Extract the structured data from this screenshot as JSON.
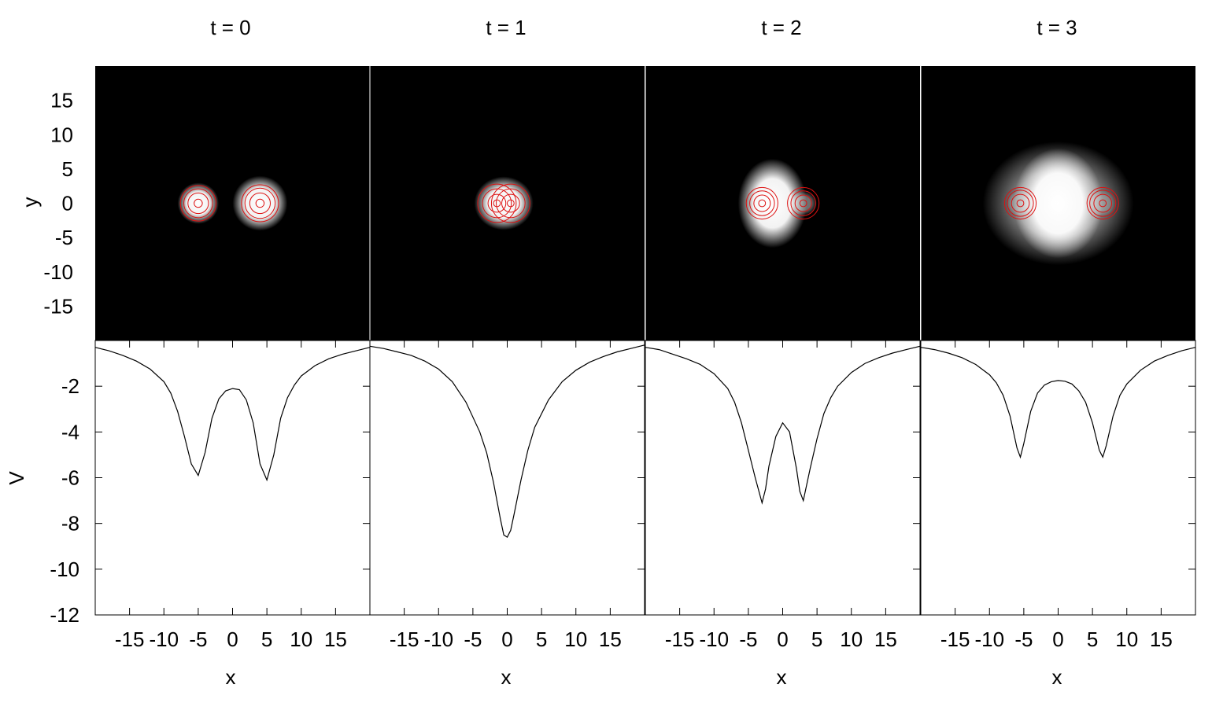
{
  "colors": {
    "background": "#ffffff",
    "map_background": "#000000",
    "density": "#ffffff",
    "contour": "#dd1111",
    "potential_line": "#000000"
  },
  "chart_data": {
    "type": "multi-panel: density maps with contours (top) and line plots (bottom)",
    "panel_titles": [
      "t = 0",
      "t = 1",
      "t = 2",
      "t = 3"
    ],
    "top_row": {
      "type": "heatmap",
      "xlim": [
        -20,
        20
      ],
      "ylim": [
        -20,
        20
      ],
      "ylabel": "y",
      "yticks": [
        "15",
        "10",
        "5",
        "0",
        "-5",
        "-10",
        "-15"
      ],
      "ytick_values": [
        15,
        10,
        5,
        0,
        -5,
        -10,
        -15
      ],
      "panels": [
        {
          "t": 0,
          "blobs": [
            {
              "x": -5,
              "y": 0,
              "rx": 3.0,
              "ry": 3.0,
              "intensity": 1.0
            },
            {
              "x": 4,
              "y": 0,
              "rx": 4.0,
              "ry": 4.0,
              "intensity": 1.0
            }
          ],
          "contours": [
            {
              "x": -5,
              "y": 0,
              "radii": [
                0.6,
                1.5,
                2.1,
                2.6
              ]
            },
            {
              "x": 4,
              "y": 0,
              "radii": [
                0.6,
                1.5,
                2.2,
                2.7
              ]
            }
          ]
        },
        {
          "t": 1,
          "blobs": [
            {
              "x": -0.5,
              "y": 0,
              "rx": 4.3,
              "ry": 3.9,
              "intensity": 1.0
            }
          ],
          "contours": [
            {
              "x": -1.5,
              "y": 0,
              "radii": [
                0.5,
                1.3,
                2.1,
                2.8
              ]
            },
            {
              "x": 0.5,
              "y": 0,
              "radii": [
                0.5,
                1.3,
                2.1,
                2.8
              ]
            }
          ]
        },
        {
          "t": 2,
          "blobs": [
            {
              "x": -1.5,
              "y": 0,
              "rx": 5.0,
              "ry": 6.5,
              "intensity": 1.0
            },
            {
              "x": -2.5,
              "y": 0,
              "rx": 2.2,
              "ry": 2.0,
              "intensity": 0.5
            },
            {
              "x": 3.0,
              "y": 0,
              "rx": 2.0,
              "ry": 1.8,
              "intensity": 0.45
            }
          ],
          "contours": [
            {
              "x": -3,
              "y": 0,
              "radii": [
                0.5,
                1.2,
                1.8,
                2.3
              ]
            },
            {
              "x": 3,
              "y": 0,
              "radii": [
                0.5,
                1.2,
                1.8,
                2.3
              ]
            }
          ]
        },
        {
          "t": 3,
          "blobs": [
            {
              "x": 0,
              "y": 0,
              "rx": 6.5,
              "ry": 8.0,
              "intensity": 1.0
            },
            {
              "x": 0,
              "y": 0,
              "rx": 11.0,
              "ry": 9.0,
              "intensity": 0.55
            },
            {
              "x": -5.5,
              "y": 0,
              "rx": 2.0,
              "ry": 1.9,
              "intensity": 0.25
            },
            {
              "x": 6.5,
              "y": 0,
              "rx": 2.0,
              "ry": 1.9,
              "intensity": 0.25
            }
          ],
          "contours": [
            {
              "x": -5.5,
              "y": 0,
              "radii": [
                0.5,
                1.3,
                1.9,
                2.3
              ]
            },
            {
              "x": 6.5,
              "y": 0,
              "radii": [
                0.5,
                1.3,
                1.9,
                2.3
              ]
            }
          ]
        }
      ]
    },
    "bottom_row": {
      "type": "line",
      "xlim": [
        -20,
        20
      ],
      "ylim": [
        -12,
        0
      ],
      "xlabel": "x",
      "ylabel": "V",
      "xticks": [
        "-15",
        "-10",
        "-5",
        "0",
        "5",
        "10",
        "15"
      ],
      "xtick_values": [
        -15,
        -10,
        -5,
        0,
        5,
        10,
        15
      ],
      "yticks": [
        "-2",
        "-4",
        "-6",
        "-8",
        "-10",
        "-12"
      ],
      "ytick_values": [
        -2,
        -4,
        -6,
        -8,
        -10,
        -12
      ],
      "series": [
        {
          "t": 0,
          "x": [
            -20,
            -18,
            -16,
            -14,
            -12,
            -10,
            -9,
            -8,
            -7,
            -6,
            -5,
            -4,
            -3,
            -2,
            -1,
            0,
            1,
            2,
            3,
            4,
            5,
            6,
            7,
            8,
            9,
            10,
            12,
            14,
            16,
            18,
            20
          ],
          "y": [
            -0.3,
            -0.45,
            -0.65,
            -0.9,
            -1.25,
            -1.8,
            -2.3,
            -3.1,
            -4.2,
            -5.4,
            -5.9,
            -4.9,
            -3.4,
            -2.55,
            -2.2,
            -2.1,
            -2.15,
            -2.6,
            -3.6,
            -5.4,
            -6.1,
            -5.0,
            -3.4,
            -2.5,
            -1.95,
            -1.55,
            -1.1,
            -0.8,
            -0.6,
            -0.45,
            -0.3
          ]
        },
        {
          "t": 1,
          "x": [
            -20,
            -18,
            -16,
            -14,
            -12,
            -10,
            -8,
            -6,
            -4,
            -3,
            -2,
            -1,
            -0.5,
            0,
            0.5,
            1,
            2,
            3,
            4,
            6,
            8,
            10,
            12,
            14,
            16,
            18,
            20
          ],
          "y": [
            -0.25,
            -0.35,
            -0.5,
            -0.65,
            -0.9,
            -1.25,
            -1.8,
            -2.7,
            -4.0,
            -4.9,
            -6.2,
            -7.8,
            -8.5,
            -8.6,
            -8.3,
            -7.6,
            -6.1,
            -4.8,
            -3.8,
            -2.6,
            -1.8,
            -1.3,
            -0.95,
            -0.7,
            -0.5,
            -0.35,
            -0.2
          ]
        },
        {
          "t": 2,
          "x": [
            -20,
            -18,
            -16,
            -14,
            -12,
            -10,
            -8,
            -7,
            -6,
            -5,
            -4,
            -3,
            -2.5,
            -2,
            -1,
            0,
            1,
            2,
            2.5,
            3,
            4,
            5,
            6,
            7,
            8,
            10,
            12,
            14,
            16,
            18,
            20
          ],
          "y": [
            -0.3,
            -0.4,
            -0.6,
            -0.8,
            -1.05,
            -1.45,
            -2.1,
            -2.7,
            -3.6,
            -4.8,
            -6.0,
            -7.1,
            -6.5,
            -5.5,
            -4.2,
            -3.6,
            -4.0,
            -5.6,
            -6.6,
            -7.0,
            -5.6,
            -4.3,
            -3.2,
            -2.5,
            -2.0,
            -1.4,
            -1.0,
            -0.75,
            -0.55,
            -0.4,
            -0.25
          ]
        },
        {
          "t": 3,
          "x": [
            -20,
            -18,
            -16,
            -14,
            -12,
            -10,
            -9,
            -8,
            -7,
            -6,
            -5.5,
            -5,
            -4,
            -3,
            -2,
            -1,
            0,
            1,
            2,
            3,
            4,
            5,
            6,
            6.5,
            7,
            8,
            9,
            10,
            12,
            14,
            16,
            18,
            20
          ],
          "y": [
            -0.3,
            -0.4,
            -0.55,
            -0.75,
            -1.05,
            -1.5,
            -1.85,
            -2.4,
            -3.3,
            -4.7,
            -5.1,
            -4.5,
            -3.1,
            -2.3,
            -1.95,
            -1.8,
            -1.75,
            -1.78,
            -1.9,
            -2.2,
            -2.7,
            -3.6,
            -4.8,
            -5.1,
            -4.6,
            -3.3,
            -2.4,
            -1.9,
            -1.3,
            -0.9,
            -0.65,
            -0.45,
            -0.3
          ]
        }
      ]
    }
  }
}
